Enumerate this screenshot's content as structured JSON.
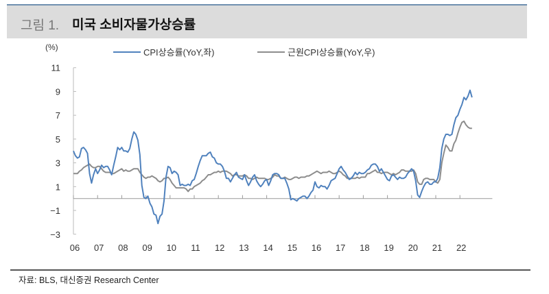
{
  "header": {
    "prefix": "그림 1.",
    "title": "미국 소비자물가상승률"
  },
  "source": "자료: BLS, 대신증권 Research Center",
  "chart_data": {
    "type": "line",
    "title": "미국 소비자물가상승률",
    "ylabel": "(%)",
    "ylim": [
      -3,
      11
    ],
    "yticks": [
      11,
      9,
      7,
      5,
      3,
      1,
      -1,
      -3
    ],
    "ytick_labels": [
      "11",
      "9",
      "7",
      "5",
      "3",
      "1",
      "−1",
      "−3"
    ],
    "xlim": [
      2006,
      2023
    ],
    "xtick_labels": [
      "06",
      "07",
      "08",
      "09",
      "10",
      "11",
      "12",
      "13",
      "14",
      "15",
      "16",
      "17",
      "18",
      "19",
      "20",
      "21",
      "22"
    ],
    "x_start": "2006-01",
    "x_frequency": "monthly",
    "grid": false,
    "legend_position": "top",
    "series": [
      {
        "name": "CPI상승률(YoY,좌)",
        "color": "#4f81bd",
        "values": [
          4.0,
          3.6,
          3.4,
          3.5,
          4.2,
          4.3,
          4.1,
          3.8,
          2.1,
          1.3,
          2.0,
          2.5,
          2.1,
          2.4,
          2.8,
          2.6,
          2.7,
          2.7,
          2.4,
          2.0,
          2.8,
          3.5,
          4.3,
          4.1,
          4.3,
          4.0,
          4.0,
          3.9,
          4.2,
          5.0,
          5.6,
          5.4,
          4.9,
          3.7,
          1.1,
          0.1,
          0.0,
          0.2,
          -0.4,
          -0.7,
          -1.3,
          -1.4,
          -2.1,
          -1.5,
          -1.3,
          -0.2,
          1.8,
          2.7,
          2.6,
          2.1,
          2.3,
          2.2,
          2.0,
          1.1,
          1.2,
          1.1,
          1.1,
          1.2,
          1.1,
          1.5,
          1.6,
          2.1,
          2.7,
          3.2,
          3.6,
          3.6,
          3.6,
          3.8,
          3.9,
          3.5,
          3.4,
          3.0,
          2.9,
          2.9,
          2.7,
          2.3,
          1.7,
          1.7,
          1.4,
          1.7,
          2.0,
          2.2,
          1.8,
          1.7,
          1.6,
          2.0,
          1.5,
          1.1,
          1.4,
          1.8,
          2.0,
          1.5,
          1.2,
          1.0,
          1.2,
          1.5,
          1.6,
          1.1,
          1.5,
          2.0,
          2.1,
          2.1,
          2.0,
          1.7,
          1.7,
          1.7,
          1.3,
          0.8,
          -0.1,
          0.0,
          -0.1,
          -0.2,
          0.0,
          0.1,
          0.2,
          0.2,
          0.0,
          0.2,
          0.5,
          0.7,
          1.4,
          1.0,
          0.9,
          1.1,
          1.0,
          1.0,
          0.8,
          1.1,
          1.5,
          1.6,
          1.7,
          2.1,
          2.5,
          2.7,
          2.4,
          2.2,
          1.9,
          1.6,
          1.7,
          1.9,
          2.2,
          2.0,
          2.2,
          2.1,
          2.1,
          2.2,
          2.4,
          2.5,
          2.8,
          2.9,
          2.9,
          2.7,
          2.3,
          2.5,
          2.2,
          1.9,
          1.6,
          1.5,
          1.9,
          2.0,
          1.8,
          1.6,
          1.8,
          1.7,
          1.7,
          1.8,
          2.1,
          2.3,
          2.5,
          2.3,
          1.5,
          0.3,
          0.1,
          0.6,
          1.0,
          1.3,
          1.4,
          1.2,
          1.2,
          1.4,
          1.4,
          1.7,
          2.6,
          4.2,
          5.0,
          5.4,
          5.4,
          5.3,
          5.4,
          6.2,
          6.8,
          7.0,
          7.5,
          7.9,
          8.5,
          8.3,
          8.6,
          9.1,
          8.5
        ]
      },
      {
        "name": "근원CPI상승률(YoY,우)",
        "color": "#8c8c8c",
        "values": [
          2.1,
          2.1,
          2.1,
          2.3,
          2.4,
          2.6,
          2.7,
          2.8,
          2.9,
          2.7,
          2.6,
          2.6,
          2.7,
          2.7,
          2.5,
          2.3,
          2.2,
          2.2,
          2.2,
          2.1,
          2.1,
          2.2,
          2.3,
          2.4,
          2.5,
          2.3,
          2.4,
          2.3,
          2.3,
          2.4,
          2.5,
          2.5,
          2.5,
          2.2,
          2.0,
          1.8,
          1.7,
          1.8,
          1.8,
          1.9,
          1.8,
          1.7,
          1.5,
          1.4,
          1.5,
          1.7,
          1.7,
          1.8,
          1.6,
          1.3,
          1.1,
          0.9,
          0.9,
          0.9,
          0.9,
          0.9,
          0.8,
          0.6,
          0.8,
          0.8,
          1.0,
          1.1,
          1.2,
          1.3,
          1.5,
          1.6,
          1.8,
          2.0,
          2.0,
          2.1,
          2.2,
          2.2,
          2.3,
          2.2,
          2.3,
          2.3,
          2.3,
          2.2,
          2.1,
          1.9,
          2.0,
          2.0,
          1.9,
          1.9,
          1.9,
          2.0,
          1.9,
          1.7,
          1.7,
          1.6,
          1.7,
          1.8,
          1.7,
          1.7,
          1.7,
          1.7,
          1.6,
          1.6,
          1.7,
          1.8,
          2.0,
          1.9,
          1.9,
          1.7,
          1.7,
          1.8,
          1.7,
          1.6,
          1.6,
          1.7,
          1.8,
          1.8,
          1.7,
          1.8,
          1.8,
          1.8,
          1.9,
          1.9,
          2.0,
          2.1,
          2.2,
          2.3,
          2.2,
          2.1,
          2.2,
          2.2,
          2.2,
          2.3,
          2.2,
          2.1,
          2.1,
          2.2,
          2.3,
          2.2,
          2.0,
          1.9,
          1.7,
          1.7,
          1.7,
          1.7,
          1.7,
          1.8,
          1.7,
          1.8,
          1.8,
          1.8,
          2.1,
          2.1,
          2.2,
          2.3,
          2.4,
          2.2,
          2.2,
          2.1,
          2.2,
          2.2,
          2.2,
          2.1,
          2.0,
          2.1,
          2.0,
          2.1,
          2.2,
          2.4,
          2.4,
          2.3,
          2.3,
          2.3,
          2.3,
          2.4,
          2.1,
          1.4,
          1.2,
          1.2,
          1.6,
          1.7,
          1.7,
          1.6,
          1.6,
          1.6,
          1.4,
          1.3,
          1.6,
          3.0,
          3.8,
          4.5,
          4.3,
          4.0,
          4.0,
          4.6,
          4.9,
          5.5,
          6.0,
          6.4,
          6.5,
          6.2,
          6.0,
          5.9,
          5.9
        ]
      }
    ]
  }
}
